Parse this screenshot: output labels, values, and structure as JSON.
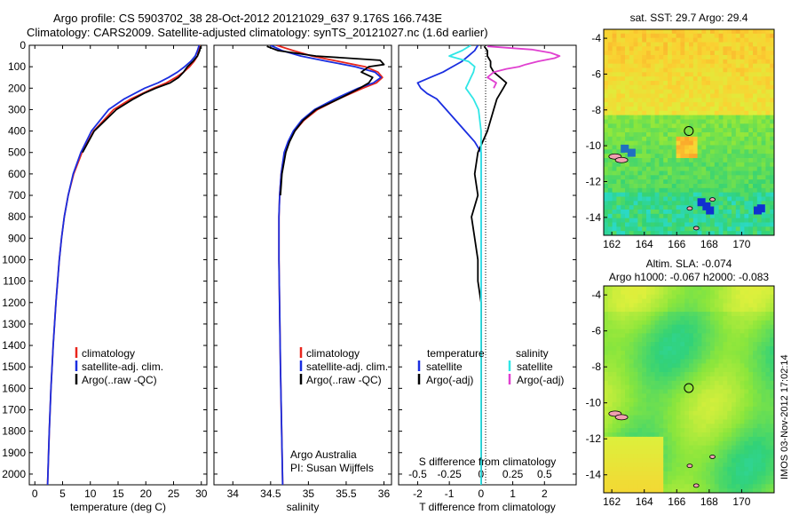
{
  "figure": {
    "title_line1": "Argo profile: CS 5903702_38 28-Oct-2012 20121029_637 9.176S 166.743E",
    "title_line2": "Climatology: CARS2009. Satellite-adjusted climatology: synTS_20121027.nc (1.6d earlier)",
    "stamp": "IMOS 03-Nov-2012 17:02:14",
    "credit_line1": "Argo Australia",
    "credit_line2": "PI: Susan Wijffels"
  },
  "colors": {
    "climatology": "#e8251b",
    "satellite": "#1a2ee0",
    "argo": "#000000",
    "sal_satellite": "#30e6e6",
    "sal_argo": "#e040d0"
  },
  "chart_data": [
    {
      "type": "line",
      "panel": "temperature",
      "xlabel": "temperature (deg C)",
      "xlim": [
        -1,
        31
      ],
      "xticks": [
        0,
        5,
        10,
        15,
        20,
        25,
        30
      ],
      "ylim": [
        0,
        2050
      ],
      "yticks": [
        0,
        100,
        200,
        300,
        400,
        500,
        600,
        700,
        800,
        900,
        1000,
        1100,
        1200,
        1300,
        1400,
        1500,
        1600,
        1700,
        1800,
        1900,
        2000
      ],
      "yreversed": true,
      "legend": [
        "climatology",
        "satellite-adj. clim.",
        "Argo(..raw -QC)"
      ],
      "series": [
        {
          "name": "climatology",
          "color": "#e8251b",
          "depth": [
            0,
            25,
            50,
            75,
            100,
            125,
            150,
            175,
            200,
            250,
            300,
            400,
            500,
            600,
            700,
            800,
            900,
            1000,
            1200,
            1400,
            1600,
            1800,
            2050
          ],
          "values": [
            29.7,
            29.5,
            29.3,
            28.7,
            27.9,
            26.8,
            25.4,
            23.7,
            21.4,
            17.3,
            14.2,
            10.6,
            8.5,
            7.0,
            6.0,
            5.3,
            4.8,
            4.4,
            3.8,
            3.3,
            2.9,
            2.6,
            2.3
          ]
        },
        {
          "name": "satellite-adj. clim.",
          "color": "#1a2ee0",
          "depth": [
            0,
            25,
            50,
            75,
            100,
            125,
            150,
            175,
            200,
            250,
            300,
            400,
            500,
            600,
            700,
            800,
            900,
            1000,
            1200,
            1400,
            1600,
            1800,
            2050
          ],
          "values": [
            29.6,
            29.3,
            28.9,
            28.1,
            27.0,
            25.7,
            24.1,
            22.2,
            19.8,
            16.1,
            13.3,
            10.2,
            8.3,
            6.9,
            6.0,
            5.3,
            4.8,
            4.4,
            3.8,
            3.3,
            2.9,
            2.6,
            2.3
          ]
        },
        {
          "name": "Argo(..raw -QC)",
          "color": "#000000",
          "depth": [
            5,
            25,
            50,
            75,
            100,
            125,
            150,
            175,
            200,
            225,
            250,
            300,
            400,
            500
          ],
          "values": [
            29.9,
            29.7,
            29.3,
            28.5,
            27.5,
            26.8,
            25.9,
            24.4,
            21.8,
            19.6,
            17.8,
            14.7,
            10.7,
            8.6
          ]
        }
      ]
    },
    {
      "type": "line",
      "panel": "salinity",
      "xlabel": "salinity",
      "xlim": [
        33.75,
        36.1
      ],
      "xticks": [
        34,
        34.5,
        35,
        35.5,
        36
      ],
      "ylim": [
        0,
        2050
      ],
      "yreversed": true,
      "legend": [
        "climatology",
        "satellite-adj. clim.",
        "Argo(..raw -QC)"
      ],
      "series": [
        {
          "name": "climatology",
          "color": "#e8251b",
          "depth": [
            0,
            25,
            50,
            75,
            100,
            125,
            150,
            175,
            200,
            250,
            300,
            350,
            400,
            450,
            500,
            550,
            600,
            700,
            800,
            1000,
            1500,
            2050
          ],
          "values": [
            34.58,
            34.8,
            35.05,
            35.4,
            35.75,
            35.92,
            35.98,
            35.9,
            35.72,
            35.4,
            35.12,
            34.94,
            34.82,
            34.74,
            34.69,
            34.66,
            34.64,
            34.62,
            34.61,
            34.61,
            34.63,
            34.66
          ]
        },
        {
          "name": "satellite-adj. clim.",
          "color": "#1a2ee0",
          "depth": [
            0,
            25,
            50,
            75,
            100,
            125,
            150,
            175,
            200,
            250,
            300,
            350,
            400,
            450,
            500,
            550,
            600,
            700,
            800,
            1000,
            1500,
            2050
          ],
          "values": [
            34.5,
            34.65,
            34.9,
            35.25,
            35.62,
            35.88,
            35.96,
            35.86,
            35.66,
            35.35,
            35.08,
            34.91,
            34.8,
            34.73,
            34.68,
            34.66,
            34.64,
            34.62,
            34.61,
            34.61,
            34.63,
            34.66
          ]
        },
        {
          "name": "Argo(..raw -QC)",
          "color": "#000000",
          "depth": [
            5,
            25,
            50,
            70,
            90,
            100,
            125,
            150,
            175,
            200,
            250,
            300,
            350,
            400,
            450,
            500,
            600,
            700
          ],
          "values": [
            34.45,
            34.6,
            35.1,
            35.95,
            36.0,
            35.8,
            35.7,
            35.85,
            35.8,
            35.68,
            35.4,
            35.1,
            34.93,
            34.82,
            34.75,
            34.7,
            34.65,
            34.63
          ]
        }
      ]
    },
    {
      "type": "line",
      "panel": "difference",
      "xlabel": "T difference from climatology",
      "xlabel_top": "S difference from climatology",
      "xlim": [
        -2.6,
        3.0
      ],
      "xticks": [
        -2,
        -1,
        0,
        1,
        2
      ],
      "xticks_top": [
        -0.5,
        -0.25,
        0,
        0.25,
        0.5
      ],
      "ylim": [
        0,
        2050
      ],
      "yreversed": true,
      "legend_headers": [
        "temperature",
        "salinity"
      ],
      "legend": [
        "satellite",
        "Argo(-adj)",
        "satellite",
        "Argo(-adj)"
      ],
      "series": [
        {
          "name": "satellite",
          "group": "temperature",
          "color": "#1a2ee0",
          "depth": [
            0,
            25,
            50,
            75,
            100,
            125,
            150,
            175,
            200,
            225,
            250,
            300,
            350,
            400,
            450,
            500,
            600,
            700,
            800,
            1000,
            1500,
            2050
          ],
          "values": [
            -0.1,
            -0.2,
            -0.4,
            -0.6,
            -0.9,
            -1.2,
            -1.6,
            -2.0,
            -1.9,
            -1.7,
            -1.4,
            -1.1,
            -0.8,
            -0.5,
            -0.2,
            0.0,
            0.0,
            0.0,
            0.0,
            0.0,
            0.0,
            0.0
          ]
        },
        {
          "name": "Argo(-adj)",
          "group": "temperature",
          "color": "#000000",
          "depth": [
            5,
            25,
            50,
            75,
            100,
            125,
            150,
            175,
            200,
            250,
            300,
            400,
            500,
            600,
            700,
            800,
            900,
            1000,
            1100,
            1200,
            1400,
            1600,
            1800,
            2050
          ],
          "values": [
            0.1,
            0.2,
            0.2,
            0.3,
            0.3,
            0.4,
            0.6,
            0.8,
            0.7,
            0.5,
            0.4,
            0.2,
            -0.1,
            -0.2,
            -0.1,
            -0.3,
            -0.2,
            -0.1,
            -0.1,
            0.0,
            0.0,
            0.0,
            0.0,
            0.0
          ]
        },
        {
          "name": "satellite",
          "group": "salinity",
          "color": "#30e6e6",
          "depth": [
            0,
            25,
            50,
            75,
            100,
            125,
            150,
            175,
            200,
            250,
            300,
            400,
            500,
            700,
            1000,
            1500,
            2050
          ],
          "values": [
            -0.08,
            -0.15,
            -0.25,
            -0.1,
            -0.05,
            -0.06,
            -0.08,
            -0.1,
            -0.12,
            -0.06,
            -0.02,
            0.0,
            0.0,
            0.0,
            0.0,
            0.0,
            0.0
          ]
        },
        {
          "name": "Argo(-adj)",
          "group": "salinity",
          "color": "#e040d0",
          "depth": [
            5,
            20,
            35,
            50,
            60,
            75,
            90,
            100,
            110,
            125,
            150,
            175,
            200
          ],
          "values": [
            0.05,
            0.4,
            0.55,
            0.62,
            0.58,
            0.45,
            0.35,
            0.3,
            0.2,
            0.1,
            0.05,
            0.12,
            0.1
          ]
        }
      ]
    },
    {
      "type": "heatmap",
      "panel": "map-sst",
      "title": "sat. SST: 29.7 Argo: 29.4",
      "xlim": [
        161.5,
        172
      ],
      "xticks": [
        162,
        164,
        166,
        168,
        170
      ],
      "ylim": [
        -15,
        -3.5
      ],
      "yticks": [
        -4,
        -6,
        -8,
        -10,
        -12,
        -14
      ],
      "argo_position": {
        "lon": 166.743,
        "lat": -9.176
      }
    },
    {
      "type": "heatmap",
      "panel": "map-sla",
      "title_line1": "Altim. SLA: -0.074",
      "title_line2": "Argo h1000: -0.067 h2000: -0.083",
      "xlim": [
        161.5,
        172
      ],
      "xticks": [
        162,
        164,
        166,
        168,
        170
      ],
      "ylim": [
        -15,
        -3.5
      ],
      "yticks": [
        -4,
        -6,
        -8,
        -10,
        -12,
        -14
      ],
      "argo_position": {
        "lon": 166.743,
        "lat": -9.176
      }
    }
  ]
}
